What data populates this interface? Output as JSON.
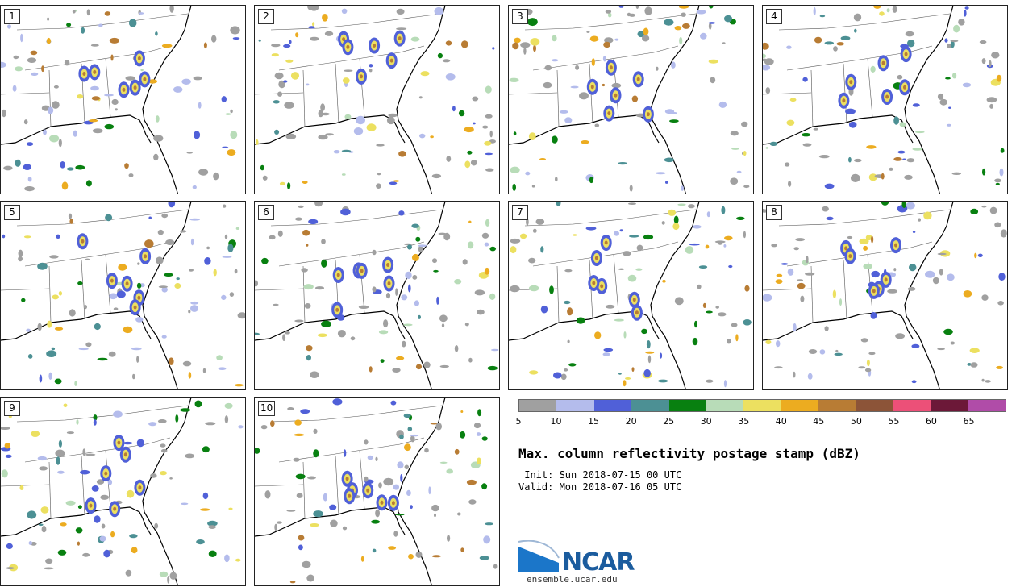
{
  "panels": [
    {
      "label": "1"
    },
    {
      "label": "2"
    },
    {
      "label": "3"
    },
    {
      "label": "4"
    },
    {
      "label": "5"
    },
    {
      "label": "6"
    },
    {
      "label": "7"
    },
    {
      "label": "8"
    },
    {
      "label": "9"
    },
    {
      "label": "10"
    }
  ],
  "colorbar": {
    "colors": [
      "#a0a0a0",
      "#b4bcec",
      "#5060d8",
      "#4c9094",
      "#088010",
      "#b8dcb8",
      "#ece060",
      "#ecac20",
      "#b87c34",
      "#8c5438",
      "#ec5078",
      "#6c1838",
      "#b04ca8"
    ],
    "ticks": [
      "5",
      "10",
      "15",
      "20",
      "25",
      "30",
      "35",
      "40",
      "45",
      "50",
      "55",
      "60",
      "65"
    ]
  },
  "title": "Max. column reflectivity postage stamp (dBZ)",
  "init": " Init: Sun 2018-07-15 00 UTC",
  "valid": "Valid: Mon 2018-07-16 05 UTC",
  "logo": {
    "text": "NCAR",
    "url": "ensemble.ucar.edu"
  }
}
